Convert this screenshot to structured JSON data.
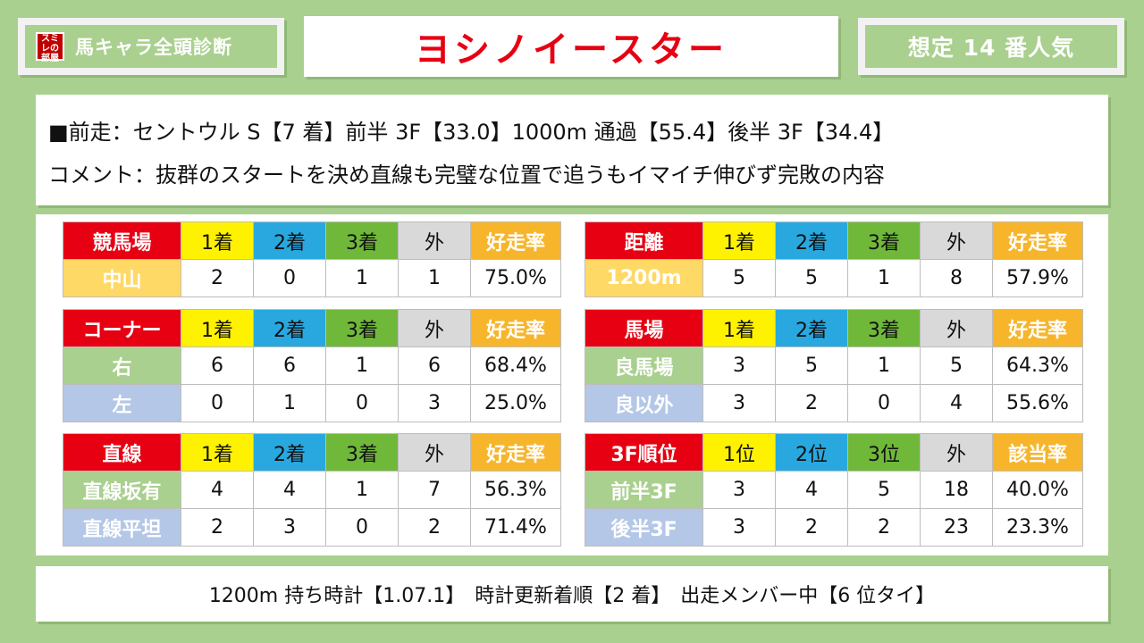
{
  "header": {
    "logo_text": "スミレの部屋",
    "left_label": "馬キャラ全頭診断",
    "title": "ヨシノイースター",
    "popularity": "想定 14 番人気"
  },
  "info": {
    "line1": "■前走：セントウル S【7 着】前半 3F【33.0】1000m 通過【55.4】後半 3F【34.4】",
    "line2": "コメント：抜群のスタートを決め直線も完璧な位置で追うもイマイチ伸びず完敗の内容"
  },
  "tables": {
    "course": {
      "headers": [
        "競馬場",
        "1着",
        "2着",
        "3着",
        "外",
        "好走率"
      ],
      "rows": [
        [
          "中山",
          "2",
          "0",
          "1",
          "1",
          "75.0%"
        ]
      ]
    },
    "distance": {
      "headers": [
        "距離",
        "1着",
        "2着",
        "3着",
        "外",
        "好走率"
      ],
      "rows": [
        [
          "1200m",
          "5",
          "5",
          "1",
          "8",
          "57.9%"
        ]
      ]
    },
    "corner": {
      "headers": [
        "コーナー",
        "1着",
        "2着",
        "3着",
        "外",
        "好走率"
      ],
      "rows": [
        [
          "右",
          "6",
          "6",
          "1",
          "6",
          "68.4%"
        ],
        [
          "左",
          "0",
          "1",
          "0",
          "3",
          "25.0%"
        ]
      ]
    },
    "going": {
      "headers": [
        "馬場",
        "1着",
        "2着",
        "3着",
        "外",
        "好走率"
      ],
      "rows": [
        [
          "良馬場",
          "3",
          "5",
          "1",
          "5",
          "64.3%"
        ],
        [
          "良以外",
          "3",
          "2",
          "0",
          "4",
          "55.6%"
        ]
      ]
    },
    "straight": {
      "headers": [
        "直線",
        "1着",
        "2着",
        "3着",
        "外",
        "好走率"
      ],
      "rows": [
        [
          "直線坂有",
          "4",
          "4",
          "1",
          "7",
          "56.3%"
        ],
        [
          "直線平坦",
          "2",
          "3",
          "0",
          "2",
          "71.4%"
        ]
      ]
    },
    "rank3f": {
      "headers": [
        "3F順位",
        "1位",
        "2位",
        "3位",
        "外",
        "該当率"
      ],
      "rows": [
        [
          "前半3F",
          "3",
          "4",
          "5",
          "18",
          "40.0%"
        ],
        [
          "後半3F",
          "3",
          "2",
          "2",
          "23",
          "23.3%"
        ]
      ]
    }
  },
  "footer": {
    "text": "1200m 持ち時計【1.07.1】　時計更新着順【2 着】　出走メンバー中【6 位タイ】"
  }
}
